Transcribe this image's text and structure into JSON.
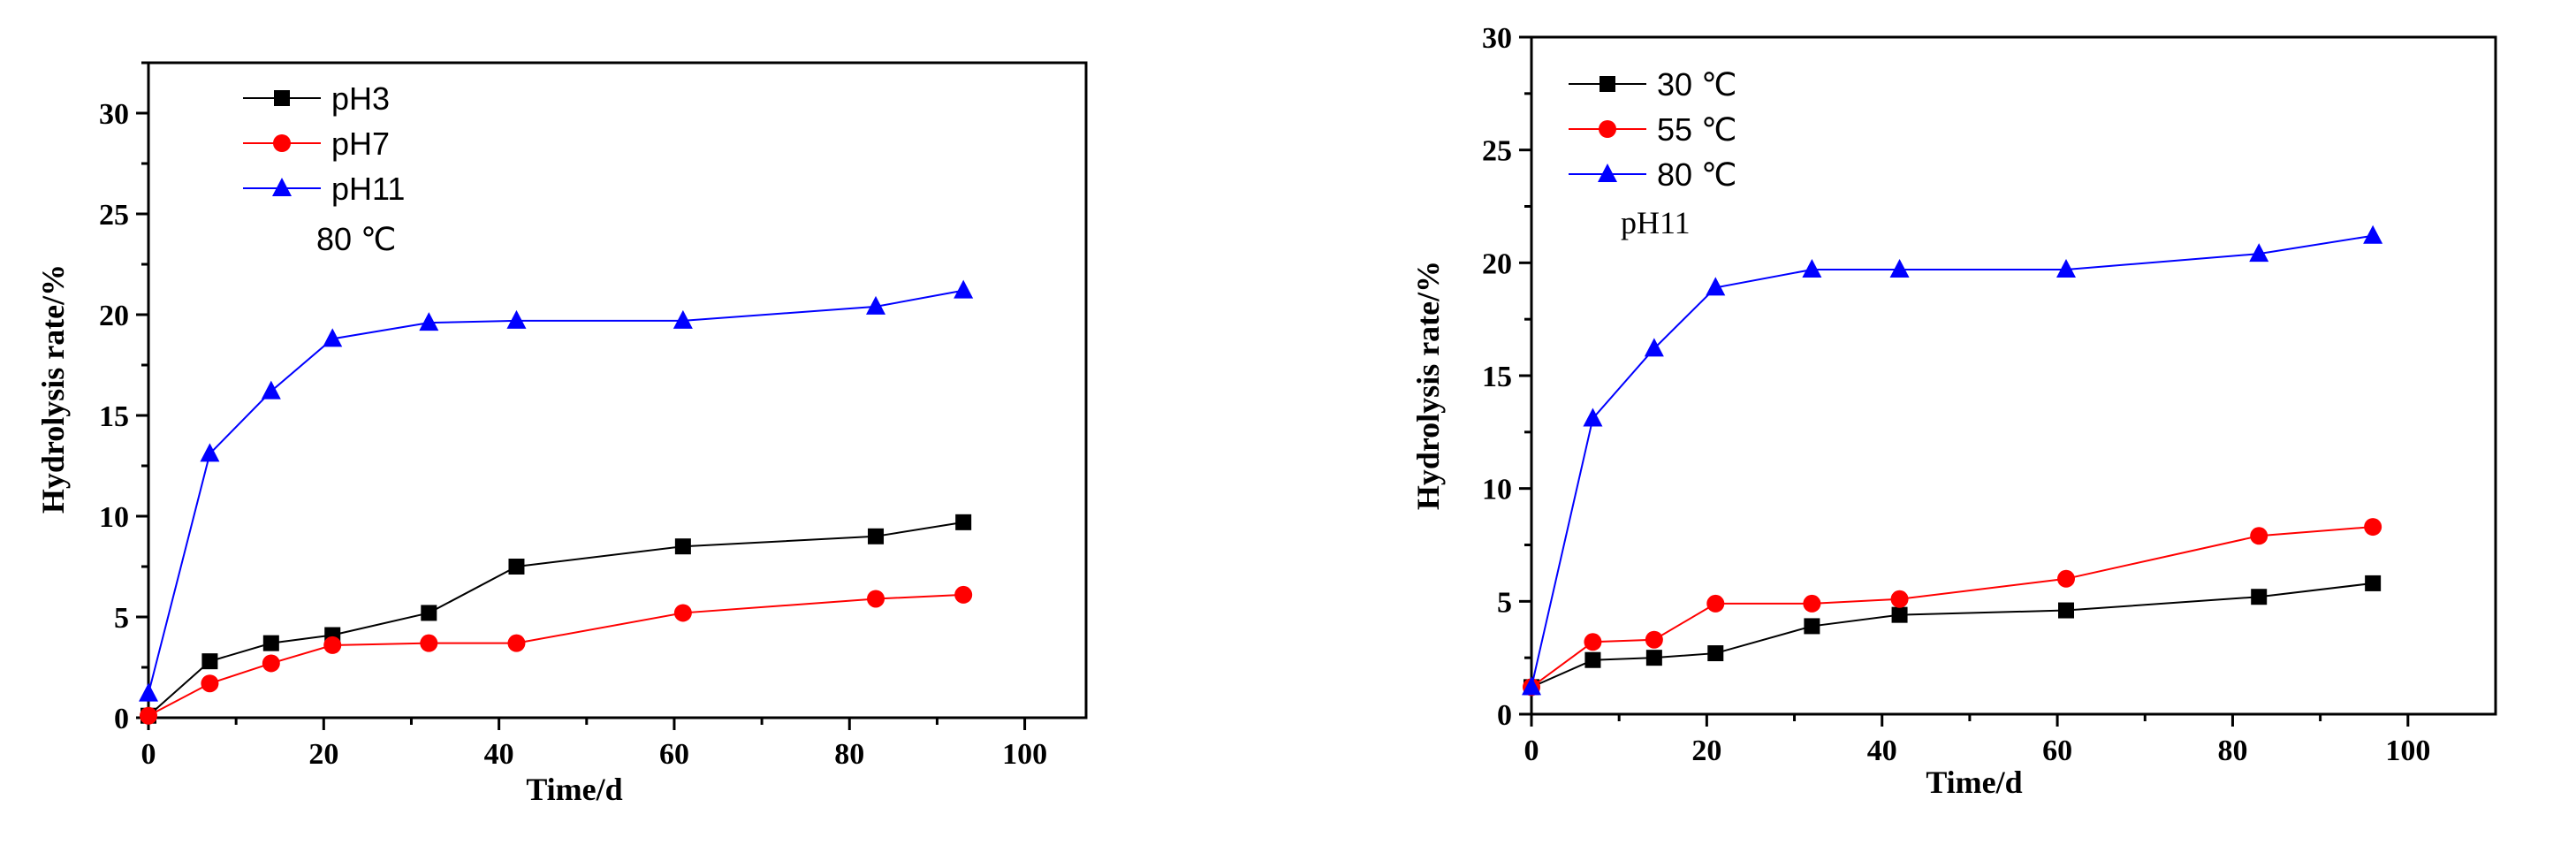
{
  "chart_data": [
    {
      "type": "line",
      "title": "",
      "xlabel": "Time/d",
      "ylabel": "Hydrolysis rate/%",
      "xlim": [
        0,
        107
      ],
      "ylim": [
        0,
        32.5
      ],
      "xticks": [
        0,
        20,
        40,
        60,
        80,
        100
      ],
      "yticks": [
        0,
        5,
        10,
        15,
        20,
        25,
        30
      ],
      "xtick_labels": [
        "0",
        "20",
        "40",
        "60",
        "80",
        "100"
      ],
      "ytick_labels": [
        "0",
        "5",
        "10",
        "15",
        "20",
        "25",
        "30"
      ],
      "annotation": "80 ℃",
      "legend_position": "top-left",
      "series": [
        {
          "name": "pH3",
          "color": "#000000",
          "marker": "square",
          "x": [
            0,
            7,
            14,
            21,
            32,
            42,
            61,
            83,
            93
          ],
          "y": [
            0.1,
            2.8,
            3.7,
            4.1,
            5.2,
            7.5,
            8.5,
            9.0,
            9.7
          ]
        },
        {
          "name": "pH7",
          "color": "#ff0000",
          "marker": "circle",
          "x": [
            0,
            7,
            14,
            21,
            32,
            42,
            61,
            83,
            93
          ],
          "y": [
            0.1,
            1.7,
            2.7,
            3.6,
            3.7,
            3.7,
            5.2,
            5.9,
            6.1
          ]
        },
        {
          "name": "pH11",
          "color": "#0000ff",
          "marker": "triangle",
          "x": [
            0,
            7,
            14,
            21,
            32,
            42,
            61,
            83,
            93
          ],
          "y": [
            1.2,
            13.1,
            16.2,
            18.8,
            19.6,
            19.7,
            19.7,
            20.4,
            21.2
          ]
        }
      ]
    },
    {
      "type": "line",
      "title": "",
      "xlabel": "Time/d",
      "ylabel": "Hydrolysis rate/%",
      "xlim": [
        0,
        110
      ],
      "ylim": [
        0,
        30
      ],
      "xticks": [
        0,
        20,
        40,
        60,
        80,
        100
      ],
      "yticks": [
        0,
        5,
        10,
        15,
        20,
        25,
        30
      ],
      "xtick_labels": [
        "0",
        "20",
        "40",
        "60",
        "80",
        "100"
      ],
      "ytick_labels": [
        "0",
        "5",
        "10",
        "15",
        "20",
        "25",
        "30"
      ],
      "annotation": "pH11",
      "legend_position": "top-left",
      "series": [
        {
          "name": "30 ℃",
          "color": "#000000",
          "marker": "square",
          "x": [
            0,
            7,
            14,
            21,
            32,
            42,
            61,
            83,
            96
          ],
          "y": [
            1.2,
            2.4,
            2.5,
            2.7,
            3.9,
            4.4,
            4.6,
            5.2,
            5.8
          ]
        },
        {
          "name": "55 ℃",
          "color": "#ff0000",
          "marker": "circle",
          "x": [
            0,
            7,
            14,
            21,
            32,
            42,
            61,
            83,
            96
          ],
          "y": [
            1.2,
            3.2,
            3.3,
            4.9,
            4.9,
            5.1,
            6.0,
            7.9,
            8.3
          ]
        },
        {
          "name": "80 ℃",
          "color": "#0000ff",
          "marker": "triangle",
          "x": [
            0,
            7,
            14,
            21,
            32,
            42,
            61,
            83,
            96
          ],
          "y": [
            1.2,
            13.1,
            16.2,
            18.9,
            19.7,
            19.7,
            19.7,
            20.4,
            21.2
          ]
        }
      ]
    }
  ]
}
